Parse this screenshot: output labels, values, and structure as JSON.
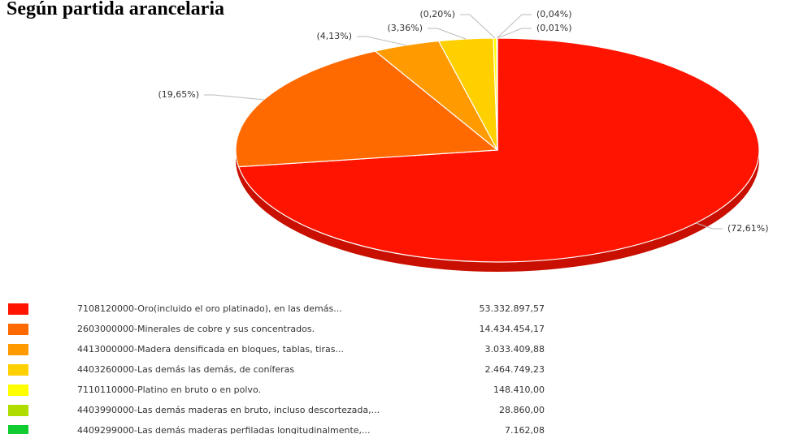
{
  "chart_data": {
    "type": "pie",
    "title": "Según partida arancelaria",
    "categories": [
      "7108120000-Oro(incluido el oro platinado), en las demás...",
      "2603000000-Minerales de cobre y sus concentrados.",
      "4413000000-Madera densificada en bloques, tablas, tiras...",
      "4403260000-Las demás las demás, de coníferas",
      "7110110000-Platino en bruto o en polvo.",
      "4403990000-Las demás maderas en bruto, incluso descortezada,...",
      "4409299000-Las demás maderas perfiladas longitudinalmente,..."
    ],
    "values": [
      72.61,
      19.65,
      4.13,
      3.36,
      0.2,
      0.04,
      0.01
    ],
    "value_labels": [
      "(72,61%)",
      "(19,65%)",
      "(4,13%)",
      "(3,36%)",
      "(0,20%)",
      "(0,04%)",
      "(0,01%)"
    ],
    "amounts": [
      53332897.57,
      14434454.17,
      3033409.88,
      2464749.23,
      148410.0,
      28860.0,
      7162.08
    ],
    "amount_labels": [
      "53.332.897,57",
      "14.434.454,17",
      "3.033.409,88",
      "2.464.749,23",
      "148.410,00",
      "28.860,00",
      "7.162,08"
    ],
    "colors": [
      "#ff1400",
      "#ff6a00",
      "#ff9a00",
      "#ffd000",
      "#ffff00",
      "#b0dc00",
      "#10cc30"
    ]
  }
}
